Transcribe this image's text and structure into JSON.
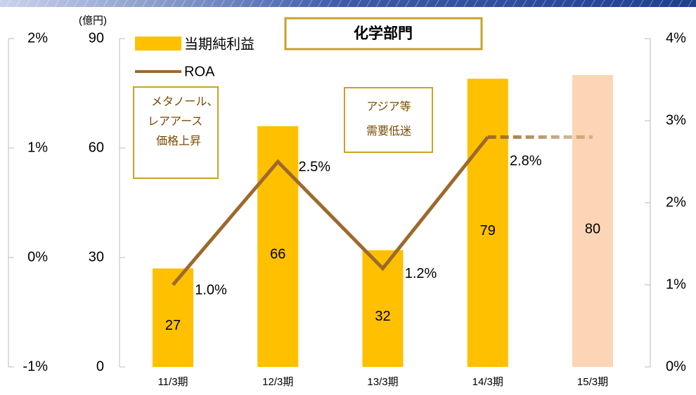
{
  "chart_data": {
    "type": "bar_line",
    "title": "化学部門",
    "y_unit": "(億円)",
    "categories": [
      "11/3期",
      "12/3期",
      "13/3期",
      "14/3期",
      "15/3期"
    ],
    "series": [
      {
        "name": "当期純利益",
        "type": "bar",
        "color": "#FFC000",
        "colors": [
          "#FFC000",
          "#FFC000",
          "#FFC000",
          "#FFC000",
          "#FBD5B5"
        ],
        "values": [
          27,
          66,
          32,
          79,
          80
        ]
      },
      {
        "name": "ROA",
        "type": "line",
        "axis": "y2",
        "color": "#9C6A2E",
        "dashed_from_index": 3,
        "values": [
          1.0,
          2.5,
          1.2,
          2.8,
          2.8
        ],
        "value_labels": [
          "1.0%",
          "2.5%",
          "1.2%",
          "2.8%",
          null
        ]
      }
    ],
    "ylim": [
      0,
      90
    ],
    "yticks": [
      0,
      30,
      60,
      90
    ],
    "y2lim": [
      0,
      4
    ],
    "y2ticks": [
      {
        "value": 0,
        "label": "0%"
      },
      {
        "value": 1,
        "label": "1%"
      },
      {
        "value": 2,
        "label": "2%"
      },
      {
        "value": 3,
        "label": "3%"
      },
      {
        "value": 4,
        "label": "4%"
      }
    ],
    "y3lim": [
      -1,
      2
    ],
    "y3ticks": [
      {
        "value": -1,
        "label": "-1%"
      },
      {
        "value": 0,
        "label": "0%"
      },
      {
        "value": 1,
        "label": "1%"
      },
      {
        "value": 2,
        "label": "2%"
      }
    ],
    "annotations": [
      [
        "メタノール、",
        "レアアース",
        "価格上昇"
      ],
      [
        "アジア等",
        "需要低迷"
      ]
    ]
  }
}
